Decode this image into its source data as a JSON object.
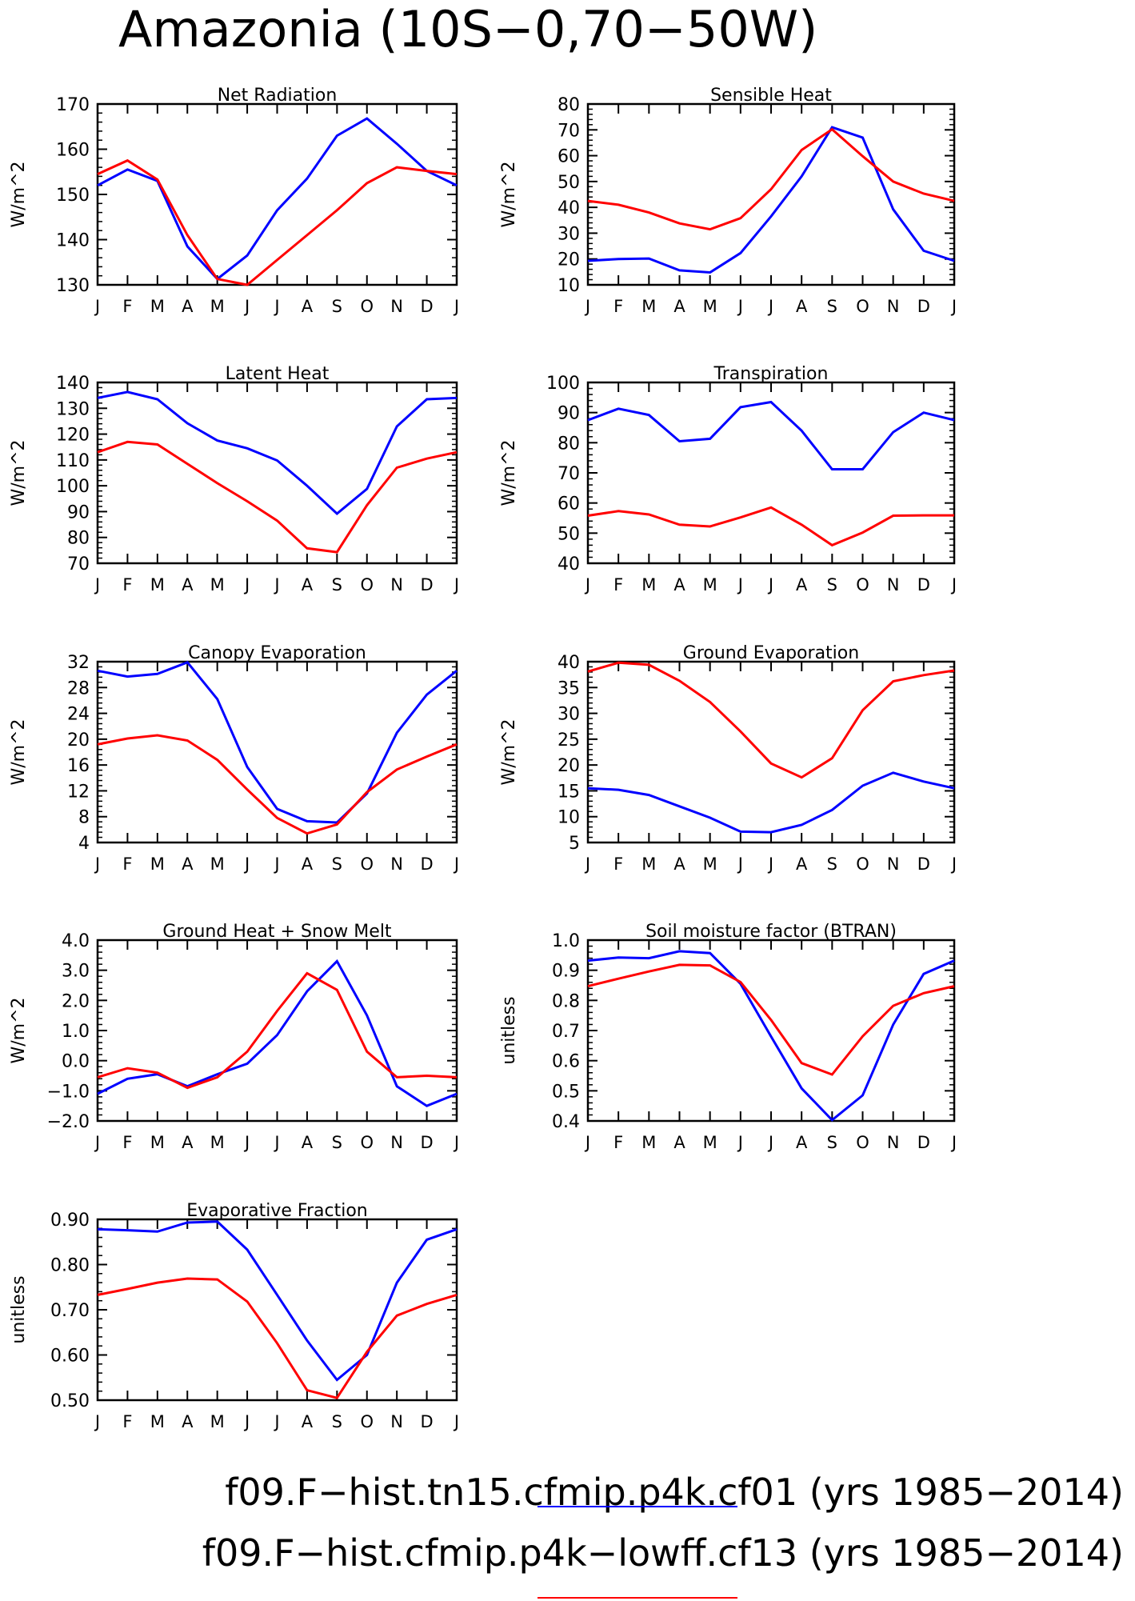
{
  "title": "Amazonia (10S−0,70−50W)",
  "months": [
    "J",
    "F",
    "M",
    "A",
    "M",
    "J",
    "J",
    "A",
    "S",
    "O",
    "N",
    "D",
    "J"
  ],
  "series_colors": {
    "blue": "#0000ff",
    "red": "#ff0000"
  },
  "legend": [
    {
      "label": "f09.F−hist.tn15.cfmip.p4k.cf01 (yrs 1985−2014)",
      "color": "#0000ff"
    },
    {
      "label": "f09.F−hist.cfmip.p4k−lowff.cf13 (yrs 1985−2014)",
      "color": "#ff0000"
    }
  ],
  "chart_data": [
    {
      "type": "line",
      "title": "Net Radiation",
      "ylabel": "W/m^2",
      "ylim": [
        130,
        170
      ],
      "yticks": [
        130,
        140,
        150,
        160,
        170
      ],
      "ytick_labels": [
        "130",
        "140",
        "150",
        "160",
        "170"
      ],
      "series": [
        {
          "color": "blue",
          "values": [
            152,
            155.5,
            153,
            138.5,
            131.3,
            136.5,
            146.5,
            153.5,
            163,
            166.8,
            161.2,
            155.2,
            152
          ]
        },
        {
          "color": "red",
          "values": [
            154.5,
            157.5,
            153.3,
            141,
            131.3,
            130,
            135.5,
            141,
            146.5,
            152.5,
            156,
            155.2,
            154.5
          ]
        }
      ]
    },
    {
      "type": "line",
      "title": "Sensible Heat",
      "ylabel": "W/m^2",
      "ylim": [
        10,
        80
      ],
      "yticks": [
        10,
        20,
        30,
        40,
        50,
        60,
        70,
        80
      ],
      "ytick_labels": [
        "10",
        "20",
        "30",
        "40",
        "50",
        "60",
        "70",
        "80"
      ],
      "series": [
        {
          "color": "blue",
          "values": [
            19.3,
            20,
            20.2,
            15.6,
            14.8,
            22.3,
            36.5,
            52,
            71,
            67,
            39.2,
            23.2,
            19.3
          ]
        },
        {
          "color": "red",
          "values": [
            42.5,
            41,
            38,
            33.8,
            31.5,
            35.8,
            47,
            62.2,
            70.2,
            59.8,
            50,
            45.3,
            42.5
          ]
        }
      ]
    },
    {
      "type": "line",
      "title": "Latent Heat",
      "ylabel": "W/m^2",
      "ylim": [
        70,
        140
      ],
      "yticks": [
        70,
        80,
        90,
        100,
        110,
        120,
        130,
        140
      ],
      "ytick_labels": [
        "70",
        "80",
        "90",
        "100",
        "110",
        "120",
        "130",
        "140"
      ],
      "series": [
        {
          "color": "blue",
          "values": [
            134,
            136.3,
            133.5,
            124.2,
            117.5,
            114.5,
            109.8,
            100,
            89.2,
            98.8,
            123,
            133.5,
            134
          ]
        },
        {
          "color": "red",
          "values": [
            113,
            117,
            116,
            108.5,
            101,
            94,
            86.5,
            75.8,
            74.3,
            92.5,
            107,
            110.5,
            113
          ]
        }
      ]
    },
    {
      "type": "line",
      "title": "Transpiration",
      "ylabel": "W/m^2",
      "ylim": [
        40,
        100
      ],
      "yticks": [
        40,
        50,
        60,
        70,
        80,
        90,
        100
      ],
      "ytick_labels": [
        "40",
        "50",
        "60",
        "70",
        "80",
        "90",
        "100"
      ],
      "series": [
        {
          "color": "blue",
          "values": [
            87.5,
            91.3,
            89.2,
            80.5,
            81.3,
            91.8,
            93.5,
            84,
            71.2,
            71.2,
            83.5,
            90,
            87.5
          ]
        },
        {
          "color": "red",
          "values": [
            55.8,
            57.3,
            56.2,
            52.8,
            52.2,
            55.2,
            58.5,
            52.8,
            46,
            50.2,
            55.8,
            55.9,
            55.9
          ]
        }
      ]
    },
    {
      "type": "line",
      "title": "Canopy Evaporation",
      "ylabel": "W/m^2",
      "ylim": [
        4,
        32
      ],
      "yticks": [
        4,
        8,
        12,
        16,
        20,
        24,
        28,
        32
      ],
      "ytick_labels": [
        "4",
        "8",
        "12",
        "16",
        "20",
        "24",
        "28",
        "32"
      ],
      "series": [
        {
          "color": "blue",
          "values": [
            30.6,
            29.7,
            30.1,
            31.9,
            26.2,
            15.7,
            9.2,
            7.3,
            7.1,
            11.6,
            21,
            26.9,
            30.6
          ]
        },
        {
          "color": "red",
          "values": [
            19.2,
            20.1,
            20.6,
            19.8,
            16.8,
            12.2,
            7.8,
            5.4,
            6.8,
            11.8,
            15.3,
            17.3,
            19.2
          ]
        }
      ]
    },
    {
      "type": "line",
      "title": "Ground Evaporation",
      "ylabel": "W/m^2",
      "ylim": [
        5,
        40
      ],
      "yticks": [
        5,
        10,
        15,
        20,
        25,
        30,
        35,
        40
      ],
      "ytick_labels": [
        "5",
        "10",
        "15",
        "20",
        "25",
        "30",
        "35",
        "40"
      ],
      "series": [
        {
          "color": "blue",
          "values": [
            15.5,
            15.2,
            14.2,
            12,
            9.8,
            7.1,
            7,
            8.4,
            11.3,
            16,
            18.5,
            16.8,
            15.5
          ]
        },
        {
          "color": "red",
          "values": [
            38.1,
            39.8,
            39.4,
            36.3,
            32.2,
            26.5,
            20.3,
            17.6,
            21.3,
            30.6,
            36.2,
            37.4,
            38.3
          ]
        }
      ]
    },
    {
      "type": "line",
      "title": "Ground Heat + Snow Melt",
      "ylabel": "W/m^2",
      "ylim": [
        -2,
        4
      ],
      "yticks": [
        -2,
        -1,
        0,
        1,
        2,
        3,
        4
      ],
      "ytick_labels": [
        "−2.0",
        "−1.0",
        "0.0",
        "1.0",
        "2.0",
        "3.0",
        "4.0"
      ],
      "series": [
        {
          "color": "blue",
          "values": [
            -1.1,
            -0.6,
            -0.45,
            -0.85,
            -0.45,
            -0.1,
            0.85,
            2.3,
            3.3,
            1.5,
            -0.85,
            -1.5,
            -1.1
          ]
        },
        {
          "color": "red",
          "values": [
            -0.55,
            -0.25,
            -0.4,
            -0.9,
            -0.55,
            0.3,
            1.65,
            2.9,
            2.35,
            0.3,
            -0.55,
            -0.5,
            -0.55
          ]
        }
      ]
    },
    {
      "type": "line",
      "title": "Soil moisture factor (BTRAN)",
      "ylabel": "unitless",
      "ylim": [
        0.4,
        1.0
      ],
      "yticks": [
        0.4,
        0.5,
        0.6,
        0.7,
        0.8,
        0.9,
        1.0
      ],
      "ytick_labels": [
        "0.4",
        "0.5",
        "0.6",
        "0.7",
        "0.8",
        "0.9",
        "1.0"
      ],
      "series": [
        {
          "color": "blue",
          "values": [
            0.932,
            0.942,
            0.94,
            0.963,
            0.957,
            0.855,
            0.68,
            0.508,
            0.403,
            0.485,
            0.72,
            0.888,
            0.932
          ]
        },
        {
          "color": "red",
          "values": [
            0.847,
            0.872,
            0.896,
            0.918,
            0.916,
            0.861,
            0.735,
            0.592,
            0.554,
            0.681,
            0.782,
            0.824,
            0.847
          ]
        }
      ]
    },
    {
      "type": "line",
      "title": "Evaporative Fraction",
      "ylabel": "unitless",
      "ylim": [
        0.5,
        0.9
      ],
      "yticks": [
        0.5,
        0.6,
        0.7,
        0.8,
        0.9
      ],
      "ytick_labels": [
        "0.50",
        "0.60",
        "0.70",
        "0.80",
        "0.90"
      ],
      "series": [
        {
          "color": "blue",
          "values": [
            0.878,
            0.876,
            0.873,
            0.893,
            0.895,
            0.833,
            0.733,
            0.632,
            0.545,
            0.6,
            0.76,
            0.855,
            0.878
          ]
        },
        {
          "color": "red",
          "values": [
            0.733,
            0.746,
            0.76,
            0.769,
            0.767,
            0.718,
            0.626,
            0.522,
            0.505,
            0.607,
            0.687,
            0.713,
            0.733
          ]
        }
      ]
    }
  ]
}
